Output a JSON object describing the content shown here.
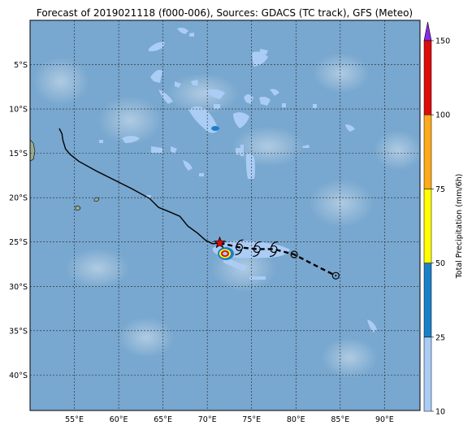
{
  "title": "Forecast of 2019021118 (f000-006), Sources: GDACS (TC track), GFS (Meteo)",
  "map": {
    "lon_range": [
      50,
      94
    ],
    "lat_range": [
      -44,
      0
    ],
    "ocean_color": "#78a7cf",
    "land_color": "#9aab8f",
    "lon_ticks": [
      "55°E",
      "60°E",
      "65°E",
      "70°E",
      "75°E",
      "80°E",
      "85°E",
      "90°E"
    ],
    "lat_ticks": [
      "5°S",
      "10°S",
      "15°S",
      "20°S",
      "25°S",
      "30°S",
      "35°S",
      "40°S"
    ],
    "grid": true
  },
  "tc_track": {
    "observed": [
      [
        53.3,
        -12.2
      ],
      [
        53.6,
        -12.8
      ],
      [
        53.7,
        -13.5
      ],
      [
        54.0,
        -14.5
      ],
      [
        54.5,
        -15.1
      ],
      [
        55.5,
        -15.9
      ],
      [
        57.5,
        -17.0
      ],
      [
        59.5,
        -18.0
      ],
      [
        61.5,
        -19.0
      ],
      [
        63.5,
        -20.1
      ],
      [
        64.5,
        -21.1
      ],
      [
        65.5,
        -21.5
      ],
      [
        66.9,
        -22.1
      ],
      [
        67.8,
        -23.2
      ],
      [
        68.9,
        -24.0
      ],
      [
        69.8,
        -24.8
      ],
      [
        70.6,
        -25.2
      ],
      [
        71.4,
        -25.1
      ]
    ],
    "current": [
      71.4,
      -25.1
    ],
    "forecast": [
      [
        71.4,
        -25.1
      ],
      [
        73.6,
        -25.6
      ],
      [
        75.6,
        -25.8
      ],
      [
        77.5,
        -25.8
      ],
      [
        79.8,
        -26.4
      ],
      [
        82.3,
        -27.7
      ],
      [
        84.5,
        -28.8
      ]
    ],
    "symbol_points": [
      [
        73.6,
        -25.6
      ],
      [
        75.6,
        -25.8
      ],
      [
        77.5,
        -25.8
      ]
    ],
    "circle_points": [
      [
        79.8,
        -26.4
      ],
      [
        84.5,
        -28.8
      ]
    ]
  },
  "colorbar": {
    "label": "Total Precipitation (mm/6h)",
    "ticks": [
      "10",
      "25",
      "50",
      "75",
      "100",
      "150"
    ],
    "colors": [
      "#aaccf5",
      "#1a80c8",
      "#ffff00",
      "#ffaa1a",
      "#dd0c0c"
    ],
    "extend_color": "#8a2be2"
  }
}
